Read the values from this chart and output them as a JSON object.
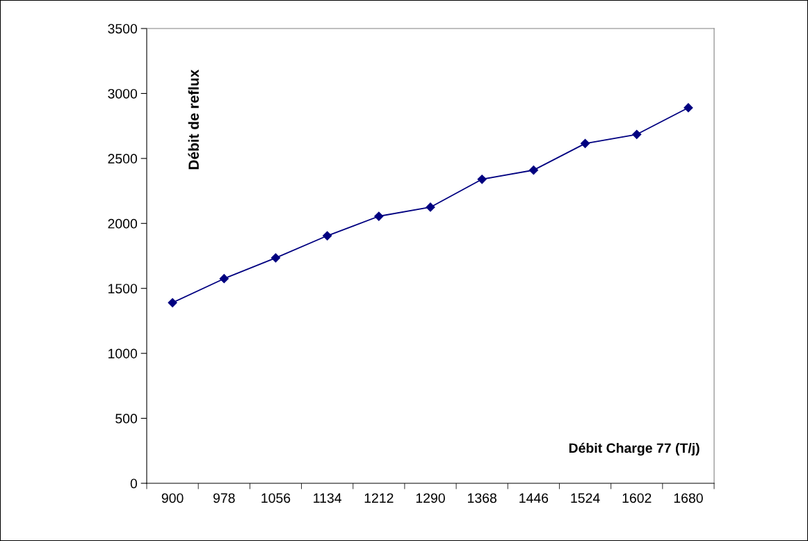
{
  "chart_data": {
    "type": "line",
    "xlabel": "Débit Charge 77 (T/j)",
    "ylabel": "Débit de reflux",
    "categories": [
      "900",
      "978",
      "1056",
      "1134",
      "1212",
      "1290",
      "1368",
      "1446",
      "1524",
      "1602",
      "1680"
    ],
    "series": [
      {
        "color": "#000080",
        "values": [
          1390,
          1575,
          1735,
          1905,
          2055,
          2125,
          2340,
          2410,
          2615,
          2685,
          2890
        ]
      }
    ],
    "ylim": [
      0,
      3500
    ],
    "yticks": [
      0,
      500,
      1000,
      1500,
      2000,
      2500,
      3000,
      3500
    ],
    "marker": "diamond",
    "line_style": "solid",
    "grid": false,
    "legend": false
  }
}
